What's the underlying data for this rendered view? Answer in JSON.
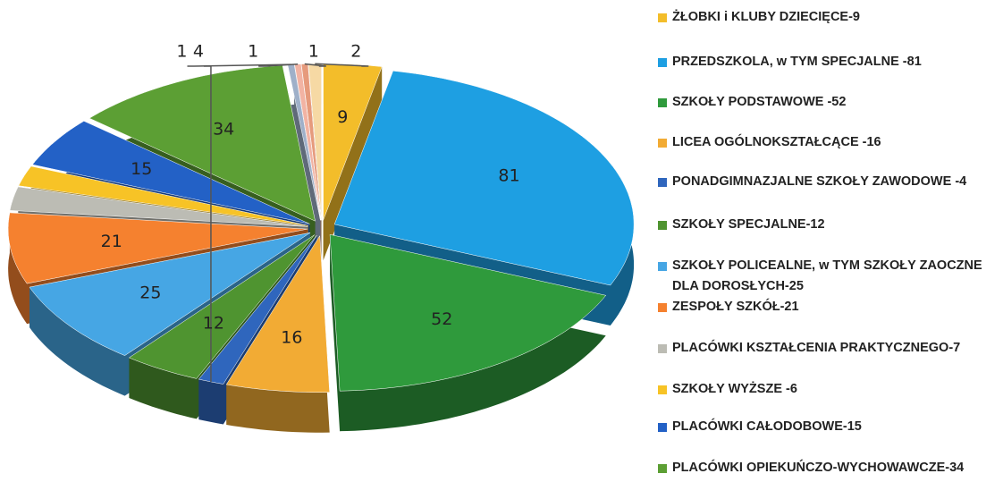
{
  "chart_data": {
    "type": "pie3d",
    "categories": [
      "ŻŁOBKI i KLUBY DZIECIĘCE-9",
      "PRZEDSZKOLA, w TYM SPECJALNE -81",
      "SZKOŁY PODSTAWOWE -52",
      "LICEA OGÓLNOKSZTAŁCĄCE -16",
      "PONADGIMNAZJALNE SZKOŁY ZAWODOWE -4",
      "SZKOŁY SPECJALNE-12",
      "SZKOŁY POLICEALNE, w TYM SZKOŁY ZAOCZNE DLA DOROSŁYCH-25",
      "ZESPOŁY SZKÓŁ-21",
      "PLACÓWKI KSZTAŁCENIA PRAKTYCZNEGO-7",
      "SZKOŁY WYŻSZE -6",
      "PLACÓWKI CAŁODOBOWE-15",
      "PLACÓWKI OPIEKUŃCZO-WYCHOWAWCZE-34",
      null,
      null,
      null,
      null
    ],
    "values": [
      9,
      81,
      52,
      16,
      4,
      12,
      25,
      21,
      7,
      6,
      15,
      34,
      1,
      1,
      1,
      2
    ],
    "colors": [
      "#f3bd2a",
      "#1e9fe2",
      "#2f9a3c",
      "#f2ab34",
      "#2f66bd",
      "#4f9430",
      "#46a6e4",
      "#f5812f",
      "#bcbcb4",
      "#f7c326",
      "#2361c6",
      "#5c9f34",
      "#9fb0c9",
      "#f2b3a3",
      "#e69a7c",
      "#f6d9a4"
    ]
  }
}
